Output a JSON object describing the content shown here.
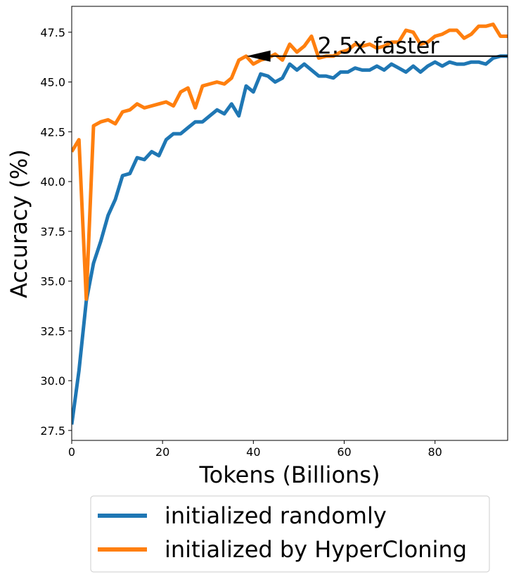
{
  "chart_data": {
    "type": "line",
    "title": "",
    "xlabel": "Tokens (Billions)",
    "ylabel": "Accuracy (%)",
    "xlim": [
      0,
      96
    ],
    "ylim": [
      27.0,
      48.8
    ],
    "xticks": [
      0,
      20,
      40,
      60,
      80
    ],
    "xtick_labels": [
      "0",
      "20",
      "40",
      "60",
      "80"
    ],
    "yticks": [
      27.5,
      30.0,
      32.5,
      35.0,
      37.5,
      40.0,
      42.5,
      45.0,
      47.5
    ],
    "ytick_labels": [
      "27.5",
      "30.0",
      "32.5",
      "35.0",
      "37.5",
      "40.0",
      "42.5",
      "45.0",
      "47.5"
    ],
    "grid": false,
    "legend_position": "bottom-outside",
    "series": [
      {
        "name": "initialized randomly",
        "color": "#1f77b4",
        "x": [
          0,
          1.6,
          3.2,
          4.8,
          6.4,
          8.0,
          9.6,
          11.2,
          12.8,
          14.4,
          16.0,
          17.6,
          19.2,
          20.8,
          22.4,
          24.0,
          25.6,
          27.2,
          28.8,
          30.4,
          32.0,
          33.6,
          35.2,
          36.8,
          38.4,
          40.0,
          41.6,
          43.2,
          44.8,
          46.4,
          48.0,
          49.6,
          51.2,
          52.8,
          54.4,
          56.0,
          57.6,
          59.2,
          60.8,
          62.4,
          64.0,
          65.6,
          67.2,
          68.8,
          70.4,
          72.0,
          73.6,
          75.2,
          76.8,
          78.4,
          80.0,
          81.6,
          83.2,
          84.8,
          86.4,
          88.0,
          89.6,
          91.2,
          92.8,
          94.4,
          96.0
        ],
        "values": [
          27.8,
          30.5,
          34.0,
          35.9,
          37.0,
          38.3,
          39.1,
          40.3,
          40.4,
          41.2,
          41.1,
          41.5,
          41.3,
          42.1,
          42.4,
          42.4,
          42.7,
          43.0,
          43.0,
          43.3,
          43.6,
          43.4,
          43.9,
          43.3,
          44.8,
          44.5,
          45.4,
          45.3,
          45.0,
          45.2,
          45.9,
          45.6,
          45.9,
          45.6,
          45.3,
          45.3,
          45.2,
          45.5,
          45.5,
          45.7,
          45.6,
          45.6,
          45.8,
          45.6,
          45.9,
          45.7,
          45.5,
          45.8,
          45.5,
          45.8,
          46.0,
          45.8,
          46.0,
          45.9,
          45.9,
          46.0,
          46.0,
          45.9,
          46.2,
          46.3,
          46.3
        ]
      },
      {
        "name": "initialized by HyperCloning",
        "color": "#ff7f0e",
        "x": [
          0,
          1.6,
          3.2,
          4.8,
          6.4,
          8.0,
          9.6,
          11.2,
          12.8,
          14.4,
          16.0,
          17.6,
          19.2,
          20.8,
          22.4,
          24.0,
          25.6,
          27.2,
          28.8,
          30.4,
          32.0,
          33.6,
          35.2,
          36.8,
          38.4,
          40.0,
          41.6,
          43.2,
          44.8,
          46.4,
          48.0,
          49.6,
          51.2,
          52.8,
          54.4,
          56.0,
          57.6,
          59.2,
          60.8,
          62.4,
          64.0,
          65.6,
          67.2,
          68.8,
          70.4,
          72.0,
          73.6,
          75.2,
          76.8,
          78.4,
          80.0,
          81.6,
          83.2,
          84.8,
          86.4,
          88.0,
          89.6,
          91.2,
          92.8,
          94.4,
          96.0
        ],
        "values": [
          41.5,
          42.1,
          34.1,
          42.8,
          43.0,
          43.1,
          42.9,
          43.5,
          43.6,
          43.9,
          43.7,
          43.8,
          43.9,
          44.0,
          43.8,
          44.5,
          44.7,
          43.7,
          44.8,
          44.9,
          45.0,
          44.9,
          45.2,
          46.1,
          46.3,
          45.9,
          46.1,
          46.2,
          46.4,
          46.1,
          46.9,
          46.5,
          46.8,
          47.3,
          46.2,
          46.3,
          46.3,
          46.5,
          46.6,
          46.9,
          46.8,
          46.9,
          46.7,
          46.8,
          47.0,
          47.0,
          47.6,
          47.5,
          46.9,
          47.0,
          47.3,
          47.4,
          47.6,
          47.6,
          47.2,
          47.4,
          47.8,
          47.8,
          47.9,
          47.3,
          47.3
        ]
      }
    ],
    "annotation": {
      "text": "2.5x faster",
      "arrow_from": [
        96,
        46.3
      ],
      "arrow_to": [
        38.5,
        46.3
      ]
    }
  }
}
